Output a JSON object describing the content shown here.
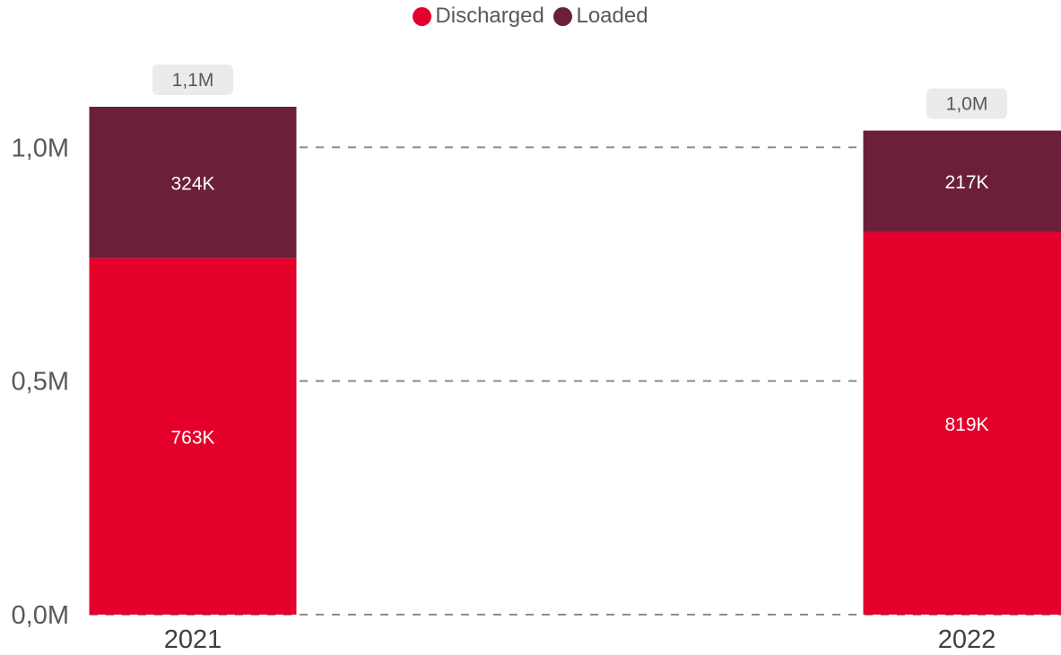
{
  "chart_data": {
    "type": "bar",
    "stacked": true,
    "categories": [
      "2021",
      "2022"
    ],
    "series": [
      {
        "name": "Discharged",
        "values": [
          763000,
          819000
        ],
        "labels": [
          "763K",
          "819K"
        ],
        "color": "#e4002b"
      },
      {
        "name": "Loaded",
        "values": [
          324000,
          217000
        ],
        "labels": [
          "324K",
          "217K"
        ],
        "color": "#6b1f3b"
      }
    ],
    "totals": [
      1087000,
      1036000
    ],
    "total_labels": [
      "1,1M",
      "1,0M"
    ],
    "y_ticks": [
      {
        "value": 0,
        "label": "0,0M"
      },
      {
        "value": 500000,
        "label": "0,5M"
      },
      {
        "value": 1000000,
        "label": "1,0M"
      }
    ],
    "ylim": [
      0,
      1087000
    ],
    "grid": true,
    "legend_position": "top-center"
  }
}
